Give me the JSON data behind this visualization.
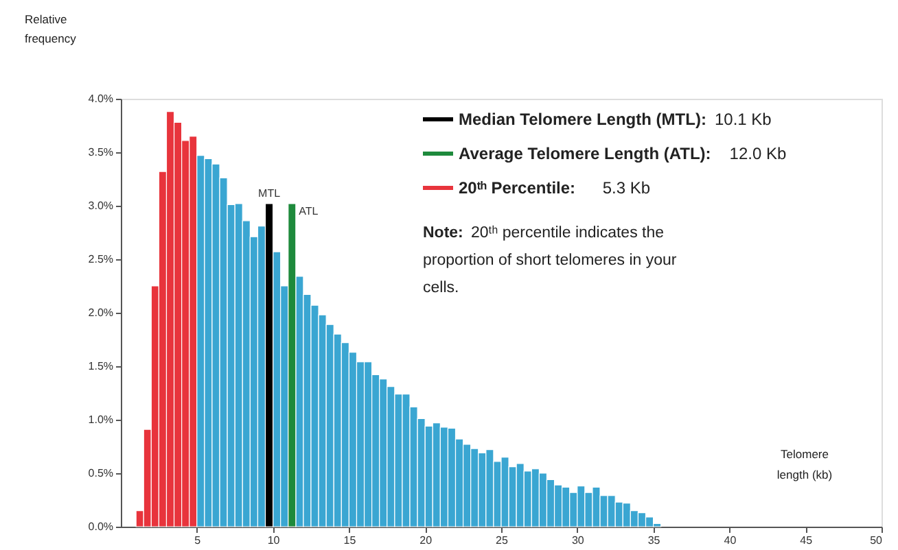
{
  "chart_data": {
    "type": "histogram",
    "xlabel": "Telomere length (kb)",
    "ylabel": "Relative frequency",
    "bins": [
      1.0,
      1.5,
      2.0,
      2.5,
      3.0,
      3.5,
      4.0,
      4.5,
      5.0,
      5.5,
      6.0,
      6.5,
      7.0,
      7.5,
      8.0,
      8.5,
      9.0,
      9.5,
      10.0,
      10.5,
      11.0,
      11.5,
      12.0,
      12.5,
      13.0,
      13.5,
      14.0,
      14.5,
      15.0,
      15.5,
      16.0,
      16.5,
      17.0,
      17.5,
      18.0,
      18.5,
      19.0,
      19.5,
      20.0,
      20.5,
      21.0,
      21.5,
      22.0,
      22.5,
      23.0,
      23.5,
      24.0,
      24.5,
      25.0,
      25.5,
      26.0,
      26.5,
      27.0,
      27.5,
      28.0,
      28.5,
      29.0,
      29.5,
      30.0,
      30.5,
      31.0,
      31.5,
      32.0,
      32.5,
      33.0,
      33.5,
      34.0,
      34.5,
      35.0,
      35.5
    ],
    "series": [
      {
        "name": "20ᵗʰ Percentile: 5.3 Kb",
        "color": "#e8343c",
        "values": [
          0.15,
          0.91,
          2.25,
          3.32,
          3.88,
          3.78,
          3.61,
          3.65,
          null,
          null,
          null,
          null,
          null,
          null,
          null,
          null,
          null,
          null,
          null,
          null,
          null,
          null,
          null,
          null,
          null,
          null,
          null,
          null,
          null,
          null,
          null,
          null,
          null,
          null,
          null,
          null,
          null,
          null,
          null,
          null,
          null,
          null,
          null,
          null,
          null,
          null,
          null,
          null,
          null,
          null,
          null,
          null,
          null,
          null,
          null,
          null,
          null,
          null,
          null,
          null,
          null,
          null,
          null,
          null,
          null,
          null,
          null,
          null,
          null
        ]
      },
      {
        "color": "#3aa6d2",
        "values": [
          null,
          null,
          null,
          null,
          null,
          null,
          null,
          null,
          3.47,
          3.44,
          3.39,
          3.26,
          3.01,
          3.02,
          2.86,
          2.71,
          2.81,
          null,
          2.57,
          2.25,
          null,
          2.34,
          2.17,
          2.07,
          1.98,
          1.89,
          1.8,
          1.72,
          1.63,
          1.54,
          1.54,
          1.42,
          1.38,
          1.31,
          1.24,
          1.24,
          1.12,
          1.01,
          0.94,
          0.97,
          0.93,
          0.92,
          0.82,
          0.77,
          0.73,
          0.69,
          0.72,
          0.61,
          0.65,
          0.56,
          0.59,
          0.52,
          0.54,
          0.5,
          0.44,
          0.39,
          0.37,
          0.32,
          0.38,
          0.32,
          0.37,
          0.29,
          0.29,
          0.23,
          0.22,
          0.15,
          0.13,
          0.09,
          0.03
        ]
      },
      {
        "name": "Median Telomere Length (MTL): 10.1 Kb",
        "color": "#000000",
        "values": [
          null,
          null,
          null,
          null,
          null,
          null,
          null,
          null,
          null,
          null,
          null,
          null,
          null,
          null,
          null,
          null,
          null,
          3.02,
          null,
          null,
          null,
          null,
          null,
          null,
          null,
          null,
          null,
          null,
          null,
          null,
          null,
          null,
          null,
          null,
          null,
          null,
          null,
          null,
          null,
          null,
          null,
          null,
          null,
          null,
          null,
          null,
          null,
          null,
          null,
          null,
          null,
          null,
          null,
          null,
          null,
          null,
          null,
          null,
          null,
          null,
          null,
          null,
          null,
          null,
          null,
          null,
          null,
          null,
          null
        ]
      },
      {
        "name": "Average Telomere Length (ATL): 12.0 Kb",
        "color": "#1e8a3c",
        "values": [
          null,
          null,
          null,
          null,
          null,
          null,
          null,
          null,
          null,
          null,
          null,
          null,
          null,
          null,
          null,
          null,
          null,
          null,
          null,
          null,
          3.02,
          null,
          null,
          null,
          null,
          null,
          null,
          null,
          null,
          null,
          null,
          null,
          null,
          null,
          null,
          null,
          null,
          null,
          null,
          null,
          null,
          null,
          null,
          null,
          null,
          null,
          null,
          null,
          null,
          null,
          null,
          null,
          null,
          null,
          null,
          null,
          null,
          null,
          null,
          null,
          null,
          null,
          null,
          null,
          null,
          null,
          null,
          null,
          null
        ]
      }
    ],
    "xlim": [
      0,
      50
    ],
    "xticks": [
      5,
      10,
      15,
      20,
      25,
      30,
      35,
      40,
      45,
      50
    ],
    "ylim": [
      0,
      4.0
    ],
    "yticks": [
      {
        "value": 0,
        "label": "0.0%"
      },
      {
        "value": 0.5,
        "label": "0.5%"
      },
      {
        "value": 1.0,
        "label": "1.0%"
      },
      {
        "value": 1.5,
        "label": "1.5%"
      },
      {
        "value": 2.0,
        "label": "2.0%"
      },
      {
        "value": 2.5,
        "label": "2.5%"
      },
      {
        "value": 3.0,
        "label": "3.0%"
      },
      {
        "value": 3.5,
        "label": "3.5%"
      },
      {
        "value": 4.0,
        "label": "4.0%"
      }
    ],
    "annotations": [
      {
        "text": "MTL",
        "x": 9.75,
        "y": 3.02
      },
      {
        "text": "ATL",
        "x": 11.25,
        "y": 3.02
      },
      "Note: 20ᵗʰ percentile indicates the proportion of short telomeres in your cells."
    ],
    "grid": false,
    "legend": "top right"
  }
}
